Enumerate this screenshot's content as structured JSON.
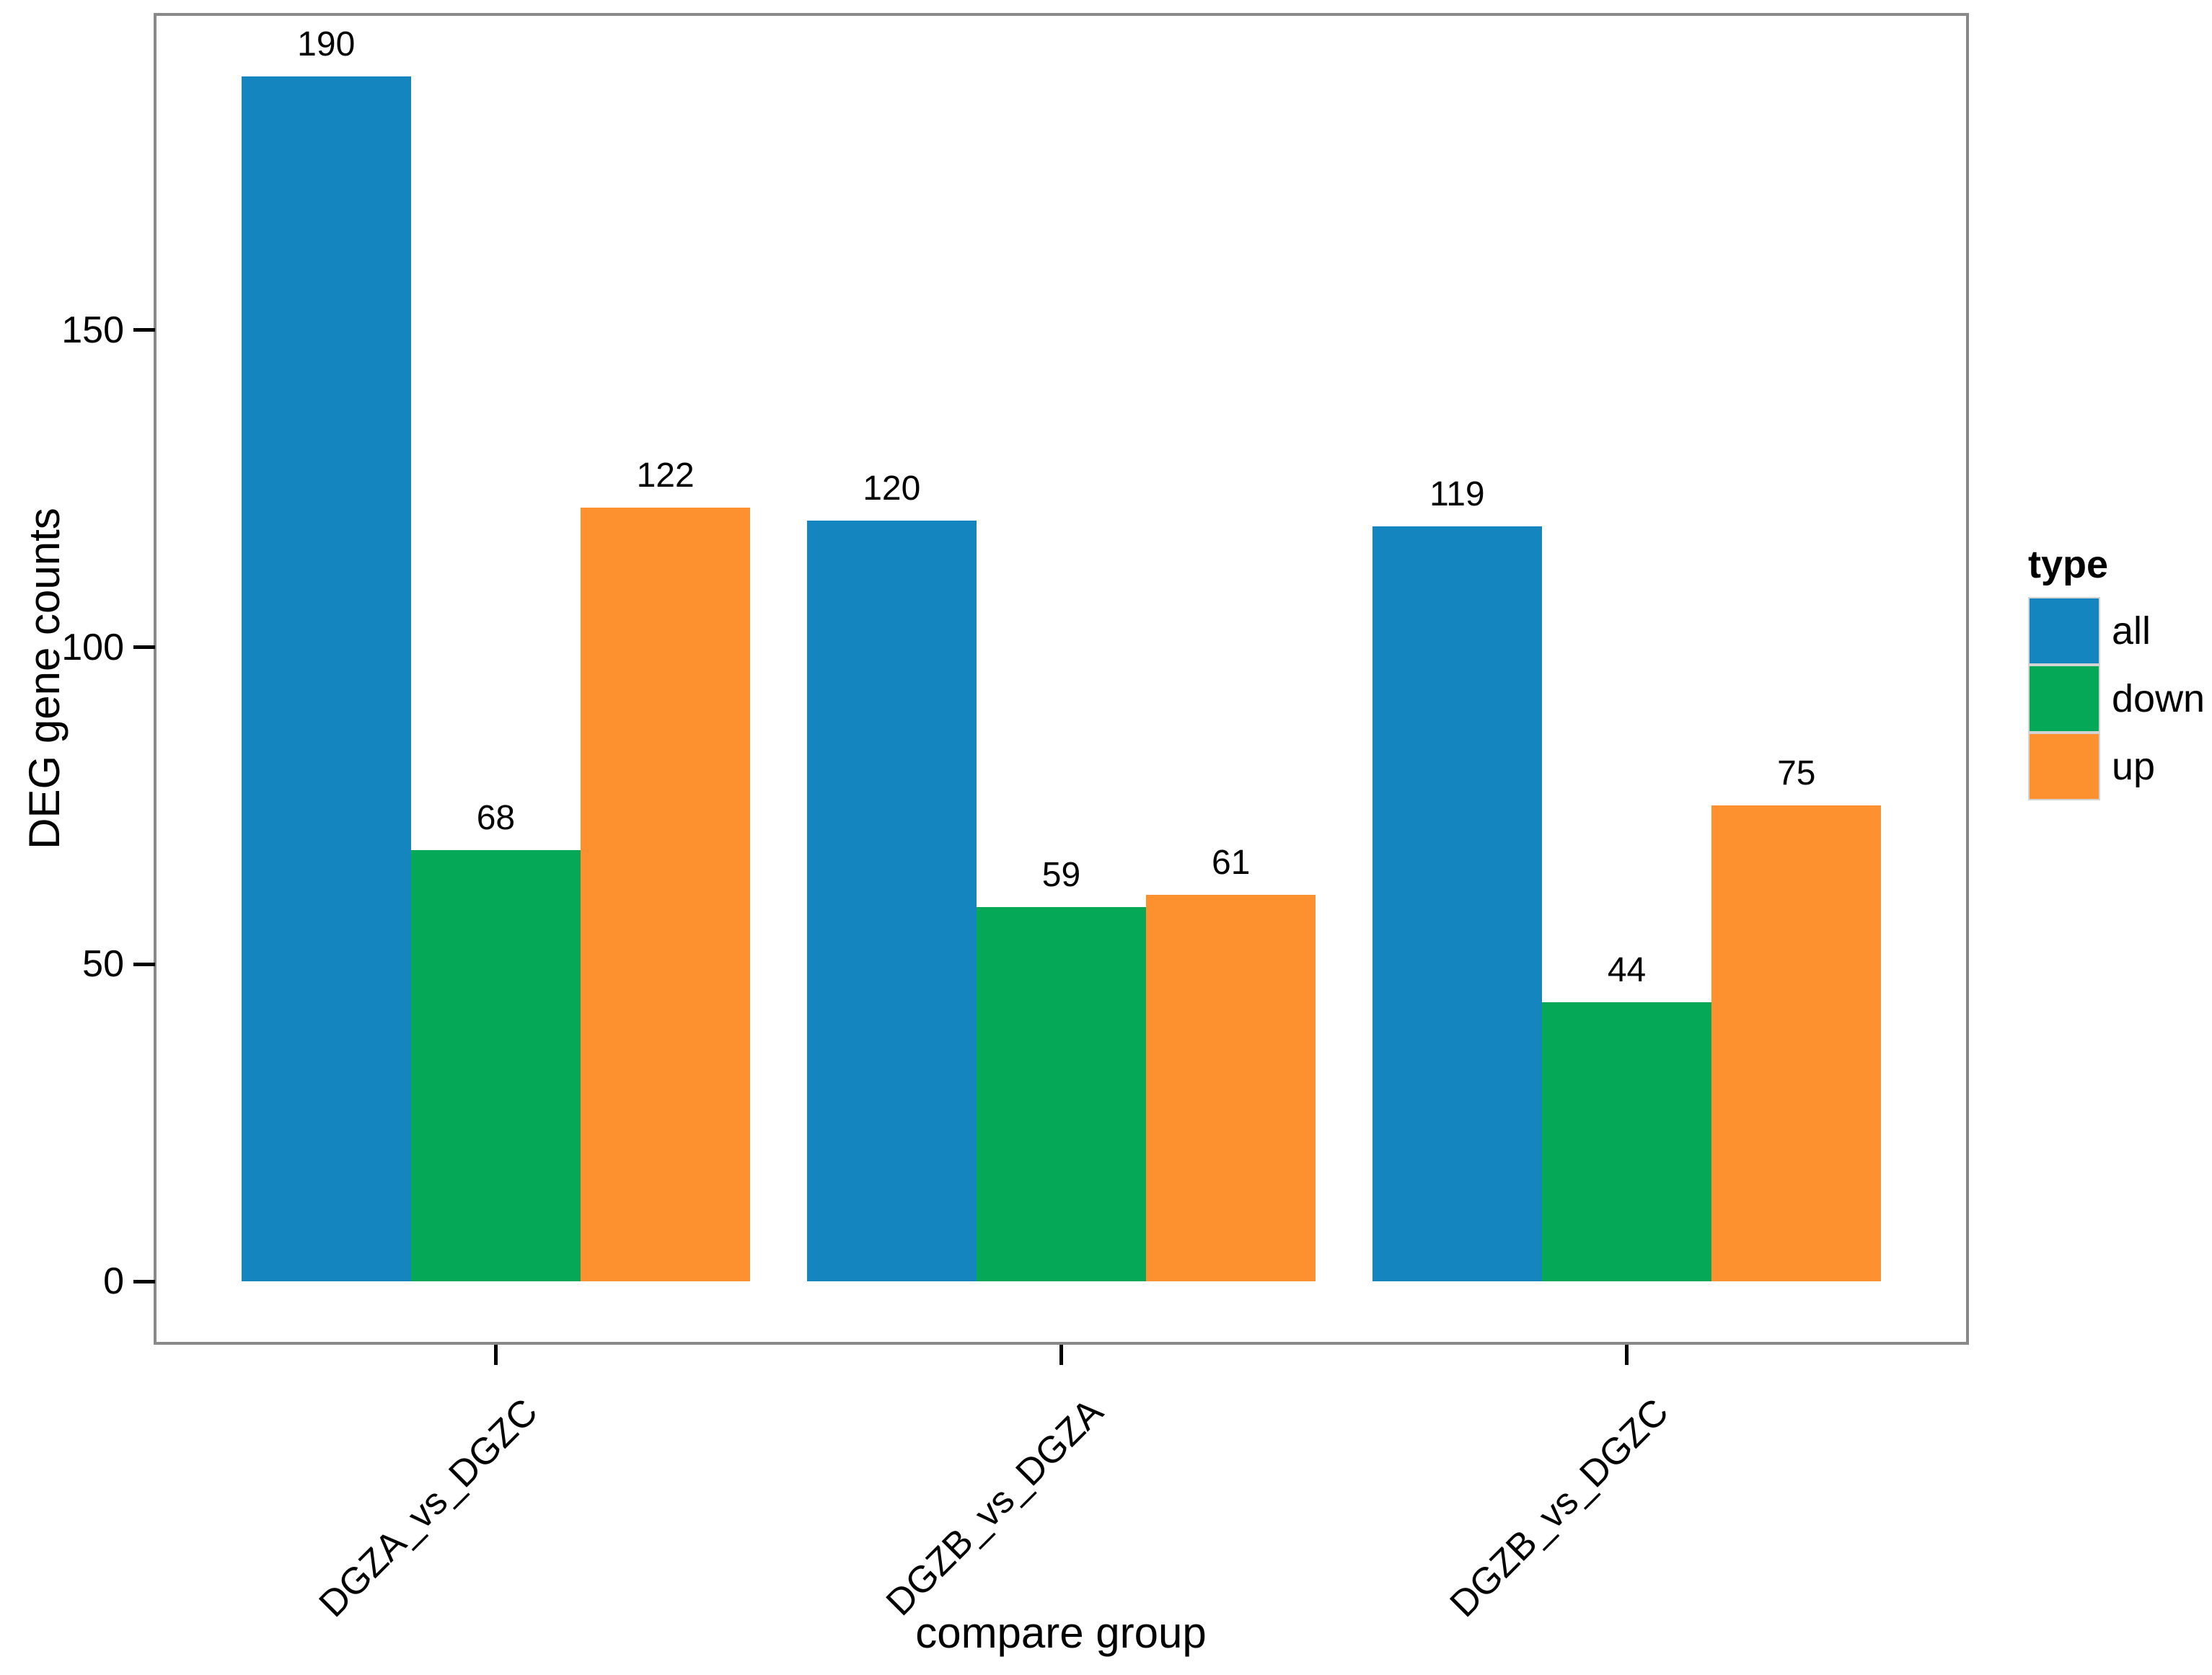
{
  "chart_data": {
    "type": "bar",
    "title": "",
    "xlabel": "compare group",
    "ylabel": "DEG gene counts",
    "categories": [
      "DGZA_vs_DGZC",
      "DGZB_vs_DGZA",
      "DGZB_vs_DGZC"
    ],
    "series": [
      {
        "name": "all",
        "color": "#1485BE",
        "values": [
          190,
          120,
          119
        ]
      },
      {
        "name": "down",
        "color": "#05A857",
        "values": [
          68,
          59,
          44
        ]
      },
      {
        "name": "up",
        "color": "#FD9130",
        "values": [
          122,
          61,
          75
        ]
      }
    ],
    "bar_labels": [
      [
        "190",
        "120",
        "119"
      ],
      [
        "68",
        "59",
        "44"
      ],
      [
        "122",
        "61",
        "75"
      ]
    ],
    "y_ticks": [
      "0",
      "50",
      "100",
      "150"
    ],
    "y_tick_values": [
      0,
      50,
      100,
      150
    ],
    "ylim": [
      -9.5,
      199.5
    ],
    "grid": false,
    "legend": {
      "title": "type",
      "position": "right"
    }
  }
}
